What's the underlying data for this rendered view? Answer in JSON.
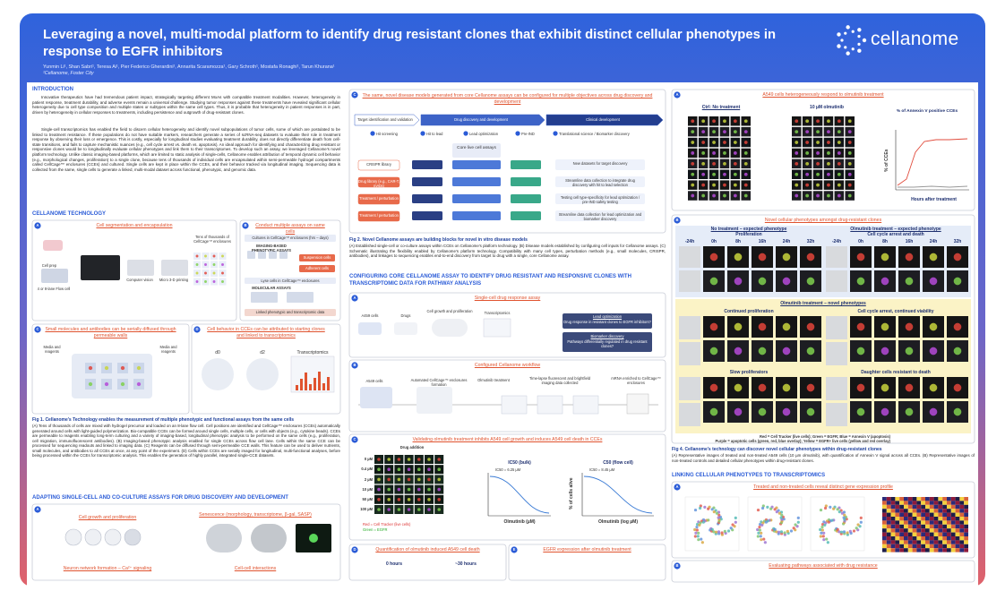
{
  "header": {
    "title": "Leveraging a novel, multi-modal platform to identify drug resistant clones that exhibit distinct cellular phenotypes in response to EGFR inhibitors",
    "authors": "Yunmin Li¹, Shan Sabri¹, Teresa Ai¹, Pier Federico Gherardini¹, Annarita Scaramozza¹, Gary Schroth¹, Mostafa Ronaghi¹, Tarun Khurana¹",
    "affiliation": "¹Cellanome, Foster City",
    "logo": "cellanome"
  },
  "left": {
    "intro_heading": "INTRODUCTION",
    "intro": [
      "Innovative therapeutics have had tremendous patient impact, strategically targeting different MoAs with compatible treatment modalities. However, heterogeneity in patient response, treatment durability, and adverse events remain a universal challenge. Studying tumor responses against these treatments have revealed significant cellular heterogeneity due to cell type composition and multiple states or subtypes within the same cell types. Thus, it is probable that heterogeneity in patient responses is in part, driven by heterogeneity in cellular responses to treatments, including persistence and outgrowth of drug-resistant clones.",
      "Single-cell transcriptomics has enabled the field to discern cellular heterogeneity and identify novel subpopulations of tumor cells, some of which are postulated to be linked to treatment resistance. If these populations do not have suitable markers, researchers generate a series of scRNA-seq datasets to evaluate their role in treatment response by observing their loss or emergence. This is costly, especially for longitudinal studies evaluating treatment durability, does not directly differentiate death from cell-state transitions, and fails to capture mechanistic nuances (e.g., cell cycle arrest vs. death vs. apoptosis). An ideal approach for identifying and characterizing drug resistant or responsive clones would be to longitudinally evaluate cellular phenotypes and link them to their transcriptomes. To develop such an assay, we leveraged Cellanome's novel platform technology. Unlike classic imaging-based platforms, which are limited to static analysis of single-cells, Cellanome enables attribution of temporal dynamic cell behavior (e.g., morphological changes, proliferation) to a single clone, because tens of thousands of individual cells are encapsulated within semi-permeable hydrogel compartments called CellCage™ enclosures (CCEs) and cultured. Single cells are kept in place within the CCEs, and their behavior tracked via longitudinal imaging. Sequencing data is collected from the same, single cells to generate a linked, multi-modal dataset across functional, phenotypic, and genomic data."
    ],
    "tech_heading": "CELLANOME TECHNOLOGY",
    "tech_panels": [
      {
        "label": "A",
        "title": "Cell segmentation and encapsulation",
        "labels": [
          "Cell prep",
          "4 or 8-lane Flow cell",
          "Computer vision",
          "Micro 3-D printing",
          "Tens of thousands of CellCage™ enclosures"
        ]
      },
      {
        "label": "B",
        "title": "Conduct multiple assays on same cells",
        "labels": [
          "Cultures in CellCage™ enclosures (hrs – days)",
          "IMAGING-BASED PHENOTYPIC ASSAYS",
          "Suspension cells",
          "Adherent cells",
          "Lyse cells in CellCage™ enclosures",
          "MOLECULAR ASSAYS",
          "Linked phenotypic and transcriptomic data"
        ]
      },
      {
        "label": "C",
        "title": "Small molecules and antibodies can be serially diffused through permeable walls",
        "labels": [
          "Media and reagents",
          "Media and reagents"
        ]
      },
      {
        "label": "D",
        "title": "Cell behavior in CCEs can be attributed to starting clones and linked to transcriptomics",
        "labels": [
          "d0",
          "d2",
          "Transcriptomics"
        ]
      }
    ],
    "fig1_title": "Fig 1. Cellanome's Technology enables the measurement of multiple phenotypic and functional assays from the same cells",
    "fig1_text": "(A) Tens of thousands of cells are mixed with hydrogel precursor and loaded on an 8-lane flow cell. Cell positions are identified and CellCage™ enclosures (CCEs) automatically generated around cells with light-guided polymerization. Bio-compatible CCEs can be formed around single cells, multiple cells, or cells with objects (e.g., cytokine beads). CCEs are permeable to reagents enabling long-term culturing and a variety of imaging-based, longitudinal phenotypic analysis to be performed on the same cells (e.g., proliferation, cell migration, immunofluorescent antibodies). (B) Imaging-based phenotypic analysis enabled for single CCEs across flow cell lane. Cells within the same CCE can be processed for sequencing readouts and linked to imaging data. (C) Reagents can be diffused through semi-permeable CCE walls. This feature can be used to deliver nutrients, small molecules, and antibodies to all CCEs at once, at any point of the experiment. (D) Cells within CCEs are serially imaged for longitudinal, multi-functional analyses, before being processed within the CCEs for transcriptomic analysis. This enables the generation of highly parallel, integrated single-CCE datasets.",
    "adapt_heading": "ADAPTING SINGLE-CELL AND CO-CULTURE ASSAYS FOR DRUG DISCOVERY AND DEVELOPMENT",
    "adapt_panel": {
      "label": "A",
      "labels": [
        "Cell growth and proliferation",
        "Senescence (morphology, transcriptome, β-gal, SASP)",
        "Neuron network formation – Ca²⁺ signaling",
        "Cell-cell interactions"
      ]
    }
  },
  "middle": {
    "workflow_panel": {
      "label": "C",
      "title": "The same, novel disease models generated from core Cellanome assays can be configured for multiple objectives across drug discovery and development",
      "stages": [
        "Target identification and validation",
        "Drug discovery and development",
        "Clinical development"
      ],
      "steps": [
        "Hit screening",
        "Hit to lead",
        "Lead optimization",
        "Pre-IND",
        "Translational science / Biomarker discovery"
      ],
      "core": "Core live cell assays",
      "inputs": [
        "CRISPR library",
        "Drug library (e.g., CAR-T, mAbs)",
        "Treatment / perturbation",
        "Treatment / perturbation"
      ],
      "outputs": [
        "New datasets for target discovery",
        "Streamline data collection to integrate drug discovery with hit to lead selection",
        "Testing cell type-specificity for lead optimization / pre-IND safety testing",
        "Streamline data collection for lead optimization and biomarker discovery"
      ]
    },
    "fig2_title": "Fig 2. Novel Cellanome assays are building blocks for novel in vitro disease models",
    "fig2_text": "(A) Established single-cell or co-culture assays within CCEs on Cellanome's platform technology. (B) Disease models established by configuring cell inputs for Cellanome assays. (C) Schematic illustrating the flexibility enabled by Cellanome's platform technology. Compatibility with many cell types, perturbation methods (e.g., small molecules, CRISPR, antibodies), and linkages to sequencing enables end-to-end discovery from target to drug with a single, core Cellanome assay.",
    "config_heading": "CONFIGURING CORE CELLANOME ASSAY TO IDENTIFY DRUG RESISTANT AND RESPONSIVE CLONES WITH TRANSCRIPTOMIC DATA FOR PATHWAY ANALYSIS",
    "assay_panel": {
      "label": "A",
      "title": "Single-cell drug response assay",
      "labels": [
        "A459 cells",
        "Drugs",
        "Cell growth and proliferation",
        "Transcriptomics",
        "Lead optimization",
        "Drug response in resistant clones to EGFR inhibitors?",
        "Biomarker discovery",
        "Pathways differentially regulated in drug resistant clones?"
      ]
    },
    "workflow2_panel": {
      "label": "B",
      "title": "Configured Cellanome workflow",
      "labels": [
        "A549 cells",
        "Automated CellCage™ enclosures formation",
        "Olmutinib treatment",
        "Time-lapse fluorescent and brightfield imaging data collected",
        "mRNA enriched to CellCage™ enclosures"
      ]
    },
    "validation_panel": {
      "label": "C",
      "title": "Validating olmutinib treatment inhibits A549 cell growth and induces A549 cell death in CCEs",
      "doses": [
        "0 µM",
        "0.4 µM",
        "2 µM",
        "10 µM",
        "50 µM",
        "100 µM"
      ],
      "labels": [
        "Drug addition",
        "IC50 (bulk)",
        "IC50 = 6.25 µM",
        "C50 (flow cell)",
        "IC50 = 8.45 µM",
        "Olmutinib (µM)",
        "Olmutinib (log µM)",
        "% of cells alive",
        "Red = Cell Tracker (live cells)",
        "Green = EGFR"
      ]
    },
    "bottom_panels": [
      {
        "label": "D",
        "title": "Quantification of olmutinib induced A549 cell death",
        "labels": [
          "0 hours",
          "~30 hours"
        ]
      },
      {
        "label": "E",
        "title": "EGFR expression after olmutinib treatment"
      }
    ]
  },
  "right": {
    "response_panel": {
      "label": "A",
      "title": "A549 cells heterogeneously respond to olmutinib treatment",
      "labels": [
        "Ctrl: No treatment",
        "10 µM olmutinib",
        "% of Annexin V positive CCEs",
        "% of CCEs",
        "Hours after treatment"
      ]
    },
    "phenotype_panel": {
      "label": "B",
      "title": "Novel cellular phenotypes amongst drug-resistant clones",
      "groups": [
        "No treatment – expected phenotype",
        "Olmutinib treatment – expected phenotype"
      ],
      "subtitles": [
        "Proliferation",
        "Cell cycle arrest and death"
      ],
      "times": [
        "-24h",
        "0h",
        "8h",
        "16h",
        "24h",
        "32h"
      ],
      "novel_heading": "Olmutinib treatment – novel phenotypes",
      "novel": [
        "Continued proliferation",
        "Cell cycle arrest, continued viability",
        "Slow proliferators",
        "Daughter cells resistant to death"
      ],
      "legend": [
        "Red = Cell Tracker (live cells); Green = EGFR; Blue = Annexin V (apoptosis)",
        "Purple = apoptotic cells (green, red, blue overlay); Yellow = EGFR+ live cells (yellow and red overlay)"
      ]
    },
    "fig4_title": "Fig 4. Cellanome's technology can discover novel cellular phenotypes within drug-resistant clones",
    "fig4_text": "(A) Representative images of treated and non-treated A549 cells (10 µm olmutinib), with quantification of Annexin V signal across all CCEs. (B) Representative images of non-treated controls and detailed cellular phenotypes within drug-resistant clones.",
    "link_heading": "LINKING CELLULAR PHENOTYPES TO TRANSCRIPTOMICS",
    "link_panels": [
      {
        "label": "A",
        "title": "Treated and non-treated cells reveal distinct gene expression profile"
      },
      {
        "label": "B",
        "title": "Evaluating pathways associated with drug resistance"
      }
    ]
  }
}
